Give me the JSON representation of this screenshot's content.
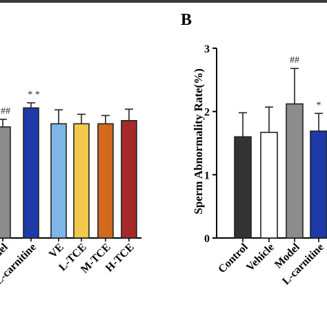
{
  "chart_data": [
    {
      "type": "bar",
      "panel_label": "",
      "title": "",
      "ylabel": "",
      "ylim": [
        0,
        3
      ],
      "categories": [
        "Model",
        "L-carnitine",
        "VE",
        "L-TCE",
        "M-TCE",
        "H-TCE"
      ],
      "tick_labels": [
        "del",
        "L-carnitine",
        "VE",
        "L-TCE",
        "M-TCE",
        "H-TCE"
      ],
      "values": [
        1.75,
        2.05,
        1.8,
        1.8,
        1.8,
        1.85
      ],
      "errors": [
        0.12,
        0.08,
        0.22,
        0.15,
        0.13,
        0.18
      ],
      "annotations": [
        "##",
        "* *",
        "",
        "",
        "",
        ""
      ],
      "colors": [
        "#8c8c8c",
        "#1d3aa8",
        "#7eb6e8",
        "#f2c94c",
        "#d2691e",
        "#a52a2a"
      ]
    },
    {
      "type": "bar",
      "panel_label": "B",
      "title": "",
      "ylabel": "Sperm Abnormality Rate(%)",
      "ylim": [
        0,
        3
      ],
      "yticks": [
        "0",
        "1",
        "2",
        "3"
      ],
      "categories": [
        "Control",
        "Vehicle",
        "Model",
        "L-carnitine"
      ],
      "values": [
        1.6,
        1.67,
        2.12,
        1.69
      ],
      "errors": [
        0.38,
        0.4,
        0.56,
        0.28
      ],
      "annotations": [
        "",
        "",
        "##",
        "*"
      ],
      "colors": [
        "#333333",
        "#ffffff",
        "#8c8c8c",
        "#1d3aa8"
      ]
    }
  ]
}
